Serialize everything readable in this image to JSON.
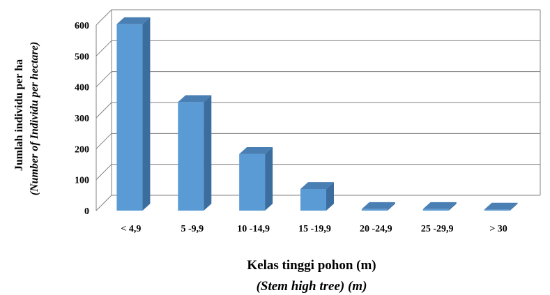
{
  "chart_data": {
    "type": "bar",
    "categories": [
      "< 4,9",
      "5 -9,9",
      "10 -14,9",
      "15 -19,9",
      "20 -24,9",
      "25 -29,9",
      "> 30"
    ],
    "values": [
      603,
      351,
      183,
      70,
      5,
      5,
      3
    ],
    "ylim": [
      0,
      600
    ],
    "yticks": [
      "0",
      "100",
      "200",
      "300",
      "400",
      "500",
      "600"
    ],
    "ylabel": "Jumlah individu  per ha",
    "ylabel_sub": "(Number of Individu per hectare)",
    "xlabel": "Kelas tinggi pohon (m)",
    "xlabel_sub": "(Stem high tree) (m)",
    "grid": true,
    "style": "3d-column",
    "colors": {
      "bar_front": "#5b9bd5",
      "bar_side": "#3b6e9f",
      "bar_top": "#4a7fb4",
      "grid": "#808080"
    }
  }
}
